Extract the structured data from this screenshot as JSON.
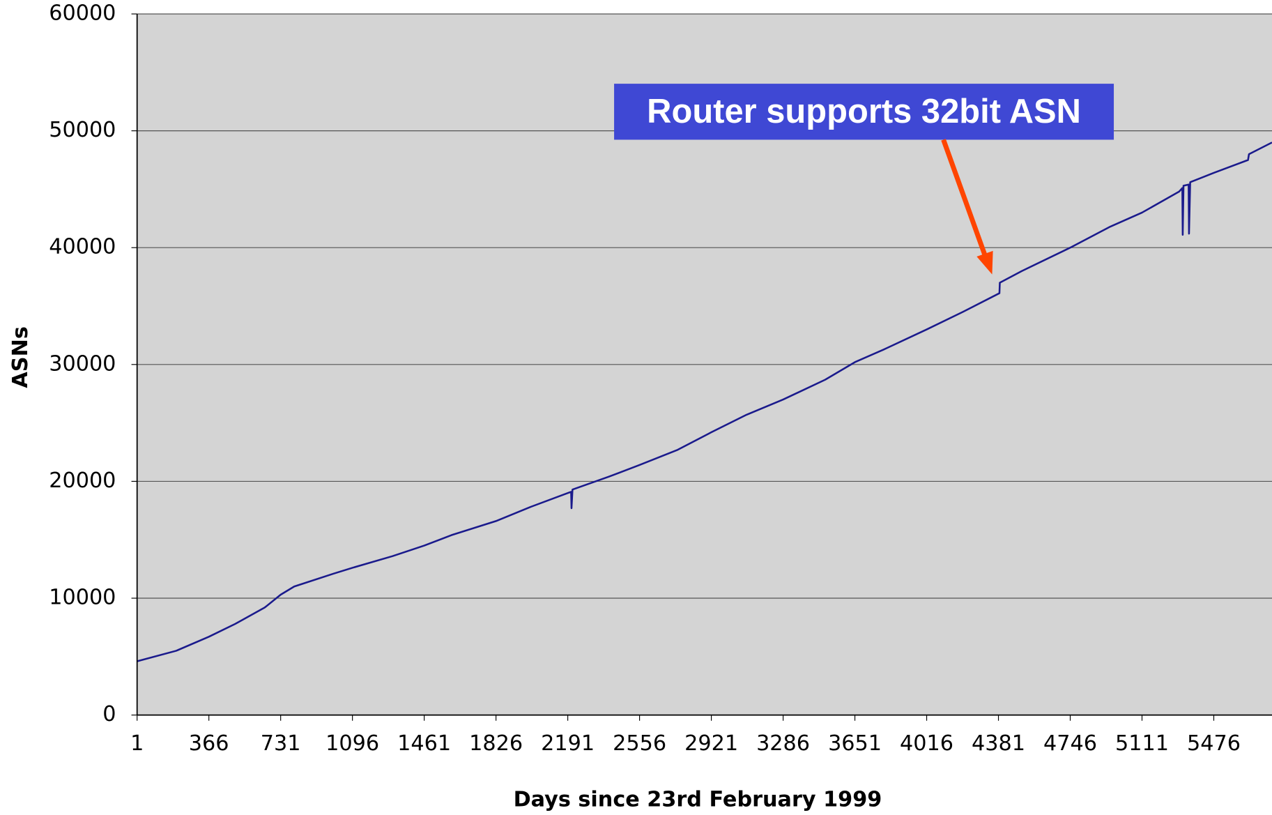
{
  "chart_data": {
    "type": "line",
    "x_label": "Days since 23rd February 1999",
    "y_label": "ASNs",
    "annotation": "Router supports 32bit ASN",
    "xlim": [
      1,
      5772
    ],
    "ylim": [
      0,
      60000
    ],
    "xticks": [
      1,
      366,
      731,
      1096,
      1461,
      1826,
      2191,
      2556,
      2921,
      3286,
      3651,
      4016,
      4381,
      4746,
      5111,
      5476
    ],
    "yticks": [
      0,
      10000,
      20000,
      30000,
      40000,
      50000,
      60000
    ],
    "grid": true,
    "series": [
      {
        "name": "ASNs",
        "color": "#1a1a8c",
        "x": [
          1,
          200,
          366,
          500,
          650,
          731,
          800,
          1000,
          1096,
          1300,
          1461,
          1600,
          1826,
          2000,
          2191,
          2208,
          2210,
          2215,
          2400,
          2556,
          2750,
          2921,
          3100,
          3286,
          3500,
          3651,
          3800,
          4016,
          4200,
          4386,
          4388,
          4500,
          4746,
          4950,
          5111,
          5300,
          5316,
          5318,
          5322,
          5348,
          5350,
          5356,
          5476,
          5650,
          5655,
          5772
        ],
        "values": [
          4600,
          5500,
          6700,
          7800,
          9200,
          10300,
          11000,
          12100,
          12600,
          13600,
          14500,
          15400,
          16600,
          17800,
          19000,
          19100,
          17700,
          19300,
          20400,
          21400,
          22700,
          24200,
          25700,
          27000,
          28700,
          30200,
          31300,
          33000,
          34500,
          36100,
          37000,
          38000,
          40000,
          41800,
          43000,
          44800,
          45100,
          41100,
          45300,
          45400,
          41200,
          45600,
          46400,
          47500,
          48000,
          49000
        ]
      }
    ]
  }
}
